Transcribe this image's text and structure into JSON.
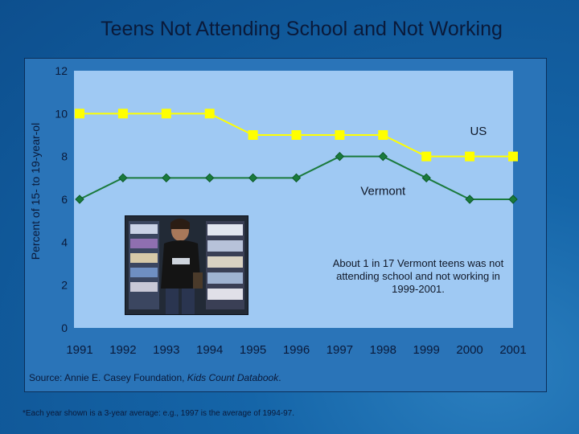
{
  "chart_data": {
    "type": "line",
    "title": "Teens Not Attending School and Not Working",
    "ylabel": "Percent of 15- to 19-year-ol",
    "xlabel": "",
    "ylim": [
      0,
      12
    ],
    "yticks": [
      0,
      2,
      4,
      6,
      8,
      10,
      12
    ],
    "x": [
      "1991",
      "1992",
      "1993",
      "1994",
      "1995",
      "1996",
      "1997",
      "1998",
      "1999",
      "2000",
      "2001"
    ],
    "grid": false,
    "series": [
      {
        "name": "US",
        "color": "#ffff00",
        "marker": "square",
        "values": [
          10,
          10,
          10,
          10,
          9,
          9,
          9,
          9,
          8,
          8,
          8
        ]
      },
      {
        "name": "Vermont",
        "color": "#1a7a3c",
        "marker": "diamond",
        "values": [
          6,
          7,
          7,
          7,
          7,
          7,
          8,
          8,
          7,
          6,
          6
        ]
      }
    ],
    "annotation": "About 1 in 17 Vermont teens was not attending school and not working in 1999-2001.",
    "source_prefix": "Source: Annie E. Casey Foundation, ",
    "source_title": "Kids Count Databook",
    "source_suffix": ".",
    "footnote": "*Each year shown is a 3-year average: e.g., 1997 is the average of 1994-97."
  },
  "colors": {
    "background": "#0d4f8e",
    "plot_area": "#9fc9f3",
    "text": "#0a1a3a"
  }
}
